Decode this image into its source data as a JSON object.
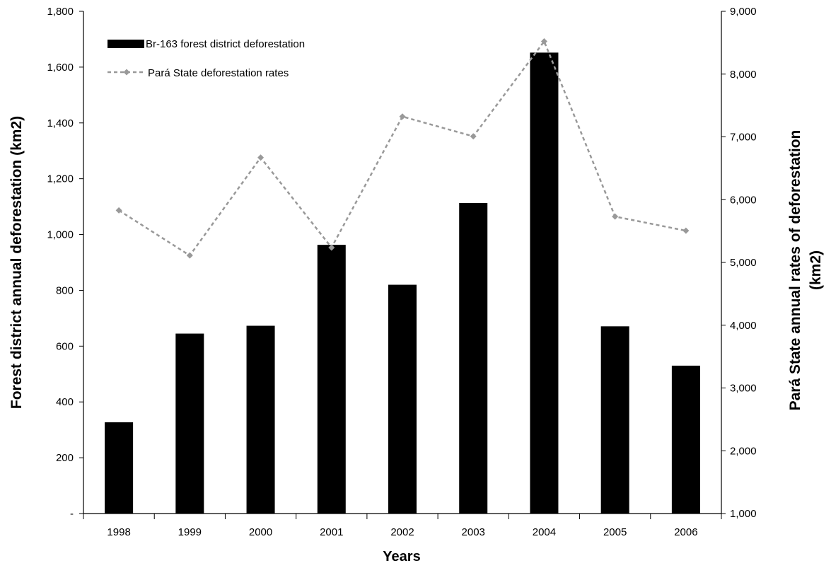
{
  "chart_data": {
    "type": "bar",
    "title": "",
    "xlabel": "Years",
    "ylabel": "Forest district annual deforestation (km2)",
    "ylabel_right": [
      "Pará State annual rates of deforestation",
      "(km2)"
    ],
    "categories": [
      "1998",
      "1999",
      "2000",
      "2001",
      "2002",
      "2003",
      "2004",
      "2005",
      "2006"
    ],
    "series": [
      {
        "name": "Br-163 forest district deforestation",
        "type": "bar",
        "axis": "left",
        "color": "#000000",
        "values": [
          327,
          645,
          673,
          963,
          820,
          1113,
          1652,
          671,
          530
        ]
      },
      {
        "name": "Pará State deforestation rates",
        "type": "line",
        "axis": "right",
        "color": "#999999",
        "style": "dashed",
        "marker": "diamond",
        "values": [
          5829,
          5111,
          6671,
          5237,
          7324,
          7008,
          8521,
          5731,
          5505
        ]
      }
    ],
    "ylim": [
      0,
      1800
    ],
    "ylim_right": [
      1000,
      9000
    ],
    "yticks": [
      "-",
      "200",
      "400",
      "600",
      "800",
      "1,000",
      "1,200",
      "1,400",
      "1,600",
      "1,800"
    ],
    "yticks_right": [
      "1,000",
      "2,000",
      "3,000",
      "4,000",
      "5,000",
      "6,000",
      "7,000",
      "8,000",
      "9,000"
    ],
    "grid": false,
    "legend": "top-left"
  }
}
